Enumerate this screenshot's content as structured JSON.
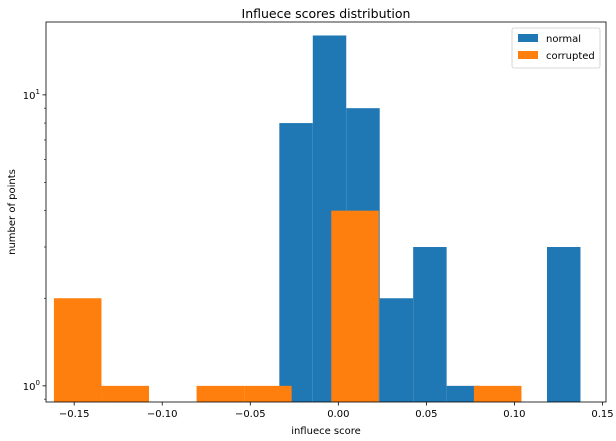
{
  "chart_data": {
    "type": "bar",
    "title": "Influece scores distribution",
    "xlabel": "influece score",
    "ylabel": "number of points",
    "xlim": [
      -0.166,
      0.152
    ],
    "ylim": [
      0.88,
      17.8
    ],
    "y_scale": "log",
    "grid": false,
    "legend_position": "top-right",
    "x_ticks": [
      {
        "value": -0.15,
        "label": "−0.15"
      },
      {
        "value": -0.1,
        "label": "−0.10"
      },
      {
        "value": -0.05,
        "label": "−0.05"
      },
      {
        "value": 0.0,
        "label": "0.00"
      },
      {
        "value": 0.05,
        "label": "0.05"
      },
      {
        "value": 0.1,
        "label": "0.10"
      },
      {
        "value": 0.15,
        "label": "0.15"
      }
    ],
    "y_ticks": [
      {
        "value": 1,
        "base": "10",
        "exp": "0"
      },
      {
        "value": 10,
        "base": "10",
        "exp": "1"
      }
    ],
    "series": [
      {
        "name": "normal",
        "color": "#1f77b4",
        "bins": [
          {
            "x0": -0.0335,
            "x1": -0.0145,
            "value": 8
          },
          {
            "x0": -0.0145,
            "x1": 0.0045,
            "value": 16
          },
          {
            "x0": 0.0045,
            "x1": 0.0235,
            "value": 9
          },
          {
            "x0": 0.0235,
            "x1": 0.0425,
            "value": 2
          },
          {
            "x0": 0.0425,
            "x1": 0.0615,
            "value": 3
          },
          {
            "x0": 0.0615,
            "x1": 0.0805,
            "value": 1
          },
          {
            "x0": 0.1185,
            "x1": 0.1375,
            "value": 3
          }
        ]
      },
      {
        "name": "corrupted",
        "color": "#ff7f0e",
        "bins": [
          {
            "x0": -0.1615,
            "x1": -0.1345,
            "value": 2
          },
          {
            "x0": -0.1345,
            "x1": -0.1075,
            "value": 1
          },
          {
            "x0": -0.0805,
            "x1": -0.0535,
            "value": 1
          },
          {
            "x0": -0.0535,
            "x1": -0.0265,
            "value": 1
          },
          {
            "x0": -0.004,
            "x1": 0.023,
            "value": 4
          },
          {
            "x0": 0.077,
            "x1": 0.104,
            "value": 1
          }
        ]
      }
    ]
  }
}
